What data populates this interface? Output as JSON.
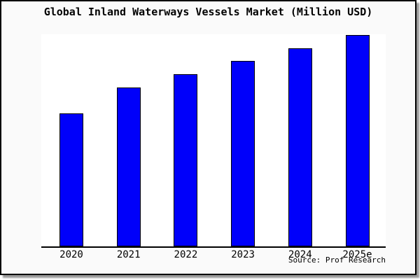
{
  "title": "Global Inland Waterways Vessels Market (Million USD)",
  "source_credit": "Source: Prof Research",
  "colors": {
    "bar_fill": "#0000fa",
    "bar_border": "#000000",
    "canvas_background": "#fafafa",
    "plot_background": "#ffffff",
    "axis": "#000000",
    "frame_border": "#000000",
    "shadow": "#999999"
  },
  "chart_data": {
    "type": "bar",
    "title": "Global Inland Waterways Vessels Market (Million USD)",
    "categories": [
      "2020",
      "2021",
      "2022",
      "2023",
      "2024",
      "2025e"
    ],
    "values": [
      190,
      227,
      246,
      265,
      283,
      302
    ],
    "value_unit": "relative height (y-axis shows no tick labels)",
    "xlabel": "",
    "ylabel": "",
    "ylim": [
      0,
      303
    ],
    "grid": false,
    "legend": false,
    "bar_color": "#0000fa"
  }
}
